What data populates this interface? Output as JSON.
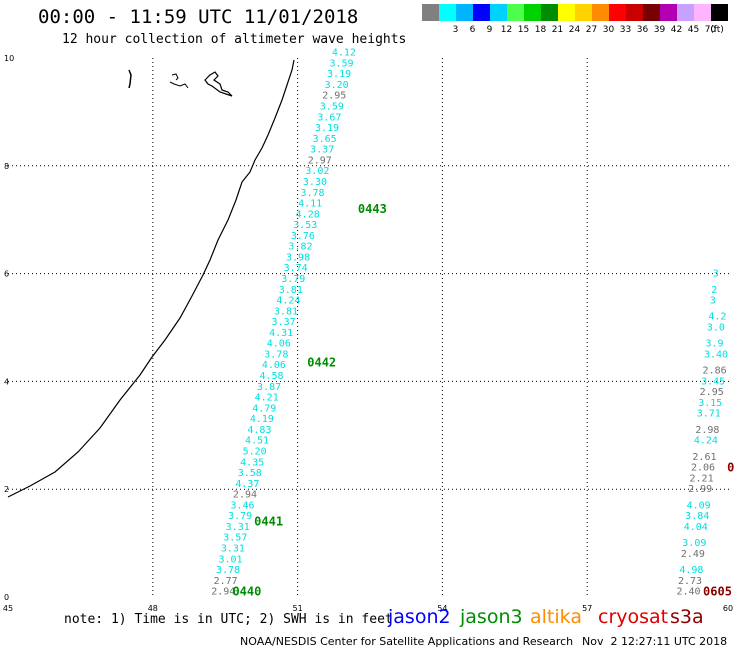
{
  "header": {
    "title": "00:00 - 11:59 UTC 11/01/2018",
    "subtitle": "12 hour collection of altimeter wave heights"
  },
  "colorbar": {
    "unit_label": "(ft)",
    "items": [
      {
        "color": "#808080",
        "label": ""
      },
      {
        "color": "#00ffff",
        "label": "3"
      },
      {
        "color": "#00b4ff",
        "label": "6"
      },
      {
        "color": "#0000ff",
        "label": "9"
      },
      {
        "color": "#00d2ff",
        "label": "12"
      },
      {
        "color": "#4cff4c",
        "label": "15"
      },
      {
        "color": "#00d200",
        "label": "18"
      },
      {
        "color": "#008c00",
        "label": "21"
      },
      {
        "color": "#ffff00",
        "label": "24"
      },
      {
        "color": "#ffd200",
        "label": "27"
      },
      {
        "color": "#ff8c00",
        "label": "30"
      },
      {
        "color": "#ff0000",
        "label": "33"
      },
      {
        "color": "#c80000",
        "label": "36"
      },
      {
        "color": "#780000",
        "label": "39"
      },
      {
        "color": "#b400b4",
        "label": "42"
      },
      {
        "color": "#c8a0ff",
        "label": "45"
      },
      {
        "color": "#ffb4ff",
        "label": "70"
      },
      {
        "color": "#000000",
        "label": ""
      }
    ]
  },
  "axes": {
    "x_ticks": [
      "45",
      "48",
      "51",
      "54",
      "57",
      "60"
    ],
    "y_ticks": [
      "0",
      "2",
      "4",
      "6",
      "8",
      "10"
    ]
  },
  "colors": {
    "cyan": "#00e0e0",
    "gray": "#707070",
    "jason3": "#008c00",
    "cryosat": "#8c0000",
    "jason2": "#0000ff",
    "altika": "#ff8c00",
    "cryosat_legend": "#e00000",
    "s3a": "#8c0000"
  },
  "tracks": {
    "left": [
      {
        "v": "2.94",
        "c": "gray",
        "lon": 49.21,
        "lat": 0.1
      },
      {
        "v": "2.77",
        "c": "gray",
        "lon": 49.26,
        "lat": 0.3
      },
      {
        "v": "3.78",
        "c": "cyan",
        "lon": 49.31,
        "lat": 0.5
      },
      {
        "v": "3.01",
        "c": "cyan",
        "lon": 49.36,
        "lat": 0.7
      },
      {
        "v": "3.31",
        "c": "cyan",
        "lon": 49.41,
        "lat": 0.9
      },
      {
        "v": "3.57",
        "c": "cyan",
        "lon": 49.46,
        "lat": 1.1
      },
      {
        "v": "3.31",
        "c": "cyan",
        "lon": 49.51,
        "lat": 1.3
      },
      {
        "v": "3.79",
        "c": "cyan",
        "lon": 49.56,
        "lat": 1.5
      },
      {
        "v": "3.46",
        "c": "cyan",
        "lon": 49.61,
        "lat": 1.7
      },
      {
        "v": "2.94",
        "c": "gray",
        "lon": 49.66,
        "lat": 1.9
      },
      {
        "v": "4.37",
        "c": "cyan",
        "lon": 49.71,
        "lat": 2.1
      },
      {
        "v": "3.58",
        "c": "cyan",
        "lon": 49.76,
        "lat": 2.3
      },
      {
        "v": "4.35",
        "c": "cyan",
        "lon": 49.81,
        "lat": 2.5
      },
      {
        "v": "5.20",
        "c": "cyan",
        "lon": 49.86,
        "lat": 2.7
      },
      {
        "v": "4.51",
        "c": "cyan",
        "lon": 49.91,
        "lat": 2.9
      },
      {
        "v": "4.83",
        "c": "cyan",
        "lon": 49.96,
        "lat": 3.1
      },
      {
        "v": "4.19",
        "c": "cyan",
        "lon": 50.01,
        "lat": 3.3
      },
      {
        "v": "4.79",
        "c": "cyan",
        "lon": 50.06,
        "lat": 3.5
      },
      {
        "v": "4.21",
        "c": "cyan",
        "lon": 50.11,
        "lat": 3.7
      },
      {
        "v": "3.87",
        "c": "cyan",
        "lon": 50.16,
        "lat": 3.9
      },
      {
        "v": "4.58",
        "c": "cyan",
        "lon": 50.21,
        "lat": 4.1
      },
      {
        "v": "4.06",
        "c": "cyan",
        "lon": 50.26,
        "lat": 4.3
      },
      {
        "v": "3.78",
        "c": "cyan",
        "lon": 50.31,
        "lat": 4.5
      },
      {
        "v": "4.06",
        "c": "cyan",
        "lon": 50.36,
        "lat": 4.7
      },
      {
        "v": "4.31",
        "c": "cyan",
        "lon": 50.41,
        "lat": 4.9
      },
      {
        "v": "3.37",
        "c": "cyan",
        "lon": 50.46,
        "lat": 5.1
      },
      {
        "v": "3.81",
        "c": "cyan",
        "lon": 50.51,
        "lat": 5.3
      },
      {
        "v": "4.24",
        "c": "cyan",
        "lon": 50.56,
        "lat": 5.5
      },
      {
        "v": "3.81",
        "c": "cyan",
        "lon": 50.61,
        "lat": 5.7
      },
      {
        "v": "3.79",
        "c": "cyan",
        "lon": 50.66,
        "lat": 5.9
      },
      {
        "v": "3.74",
        "c": "cyan",
        "lon": 50.71,
        "lat": 6.1
      },
      {
        "v": "3.98",
        "c": "cyan",
        "lon": 50.76,
        "lat": 6.3
      },
      {
        "v": "3.82",
        "c": "cyan",
        "lon": 50.81,
        "lat": 6.5
      },
      {
        "v": "3.76",
        "c": "cyan",
        "lon": 50.86,
        "lat": 6.7
      },
      {
        "v": "3.53",
        "c": "cyan",
        "lon": 50.91,
        "lat": 6.9
      },
      {
        "v": "4.28",
        "c": "cyan",
        "lon": 50.96,
        "lat": 7.1
      },
      {
        "v": "4.11",
        "c": "cyan",
        "lon": 51.01,
        "lat": 7.3
      },
      {
        "v": "3.78",
        "c": "cyan",
        "lon": 51.06,
        "lat": 7.5
      },
      {
        "v": "3.30",
        "c": "cyan",
        "lon": 51.11,
        "lat": 7.7
      },
      {
        "v": "3.02",
        "c": "cyan",
        "lon": 51.16,
        "lat": 7.9
      },
      {
        "v": "2.97",
        "c": "gray",
        "lon": 51.21,
        "lat": 8.1
      },
      {
        "v": "3.37",
        "c": "cyan",
        "lon": 51.26,
        "lat": 8.3
      },
      {
        "v": "3.65",
        "c": "cyan",
        "lon": 51.31,
        "lat": 8.5
      },
      {
        "v": "3.19",
        "c": "cyan",
        "lon": 51.36,
        "lat": 8.7
      },
      {
        "v": "3.67",
        "c": "cyan",
        "lon": 51.41,
        "lat": 8.9
      },
      {
        "v": "3.59",
        "c": "cyan",
        "lon": 51.46,
        "lat": 9.1
      },
      {
        "v": "2.95",
        "c": "gray",
        "lon": 51.51,
        "lat": 9.3
      },
      {
        "v": "3.20",
        "c": "cyan",
        "lon": 51.56,
        "lat": 9.5
      },
      {
        "v": "3.19",
        "c": "cyan",
        "lon": 51.61,
        "lat": 9.7
      },
      {
        "v": "3.59",
        "c": "cyan",
        "lon": 51.66,
        "lat": 9.9
      },
      {
        "v": "4.12",
        "c": "cyan",
        "lon": 51.71,
        "lat": 10.1
      }
    ],
    "right": [
      {
        "v": "2.40",
        "c": "gray",
        "lon": 58.85,
        "lat": 0.1
      },
      {
        "v": "2.73",
        "c": "gray",
        "lon": 58.88,
        "lat": 0.3
      },
      {
        "v": "4.98",
        "c": "cyan",
        "lon": 58.91,
        "lat": 0.5
      },
      {
        "v": "2.49",
        "c": "gray",
        "lon": 58.94,
        "lat": 0.8
      },
      {
        "v": "3.09",
        "c": "cyan",
        "lon": 58.97,
        "lat": 1.0
      },
      {
        "v": "4.04",
        "c": "cyan",
        "lon": 59.0,
        "lat": 1.3
      },
      {
        "v": "3.84",
        "c": "cyan",
        "lon": 59.03,
        "lat": 1.5
      },
      {
        "v": "4.09",
        "c": "cyan",
        "lon": 59.06,
        "lat": 1.7
      },
      {
        "v": "2.99",
        "c": "gray",
        "lon": 59.09,
        "lat": 2.0
      },
      {
        "v": "2.21",
        "c": "gray",
        "lon": 59.12,
        "lat": 2.2
      },
      {
        "v": "2.06",
        "c": "gray",
        "lon": 59.15,
        "lat": 2.4
      },
      {
        "v": "2.61",
        "c": "gray",
        "lon": 59.18,
        "lat": 2.6
      },
      {
        "v": "4.24",
        "c": "cyan",
        "lon": 59.21,
        "lat": 2.9
      },
      {
        "v": "2.98",
        "c": "gray",
        "lon": 59.24,
        "lat": 3.1
      },
      {
        "v": "3.71",
        "c": "cyan",
        "lon": 59.27,
        "lat": 3.4
      },
      {
        "v": "3.15",
        "c": "cyan",
        "lon": 59.3,
        "lat": 3.6
      },
      {
        "v": "2.95",
        "c": "gray",
        "lon": 59.33,
        "lat": 3.8
      },
      {
        "v": "3.45",
        "c": "cyan",
        "lon": 59.36,
        "lat": 4.0
      },
      {
        "v": "2.86",
        "c": "gray",
        "lon": 59.39,
        "lat": 4.2
      },
      {
        "v": "3.40",
        "c": "cyan",
        "lon": 59.42,
        "lat": 4.5
      },
      {
        "v": "3.9",
        "c": "cyan",
        "lon": 59.45,
        "lat": 4.7
      },
      {
        "v": "3.0",
        "c": "cyan",
        "lon": 59.48,
        "lat": 5.0
      },
      {
        "v": "4.2",
        "c": "cyan",
        "lon": 59.51,
        "lat": 5.2
      },
      {
        "v": "3",
        "c": "cyan",
        "lon": 59.54,
        "lat": 5.5
      },
      {
        "v": "2",
        "c": "cyan",
        "lon": 59.57,
        "lat": 5.7
      },
      {
        "v": "3",
        "c": "cyan",
        "lon": 59.6,
        "lat": 6.0
      }
    ]
  },
  "track_labels": [
    {
      "text": "0440",
      "c": "jason3",
      "lon": 49.65,
      "lat": 0.1
    },
    {
      "text": "0441",
      "c": "jason3",
      "lon": 50.1,
      "lat": 1.4
    },
    {
      "text": "0442",
      "c": "jason3",
      "lon": 51.2,
      "lat": 4.35
    },
    {
      "text": "0443",
      "c": "jason3",
      "lon": 52.25,
      "lat": 7.2
    },
    {
      "text": "0605",
      "c": "cryosat",
      "lon": 59.4,
      "lat": 0.1
    },
    {
      "text": "0",
      "c": "cryosat",
      "lon": 59.9,
      "lat": 2.4
    }
  ],
  "footer": {
    "note": "note: 1) Time is in UTC; 2) SWH is in feet",
    "satellites": [
      {
        "name": "jason2",
        "c": "jason2"
      },
      {
        "name": "jason3",
        "c": "jason3"
      },
      {
        "name": "altika",
        "c": "altika"
      },
      {
        "name": "cryosat",
        "c": "cryosat_legend"
      },
      {
        "name": "s3a",
        "c": "s3a"
      }
    ],
    "credit": "NOAA/NESDIS Center for Satellite Applications and Research",
    "timestamp": "Nov  2 12:27:11 UTC 2018"
  }
}
